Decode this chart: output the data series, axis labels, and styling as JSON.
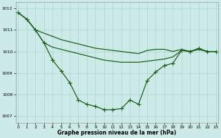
{
  "xlabel": "Graphe pression niveau de la mer (hPa)",
  "x": [
    0,
    1,
    2,
    3,
    4,
    5,
    6,
    7,
    8,
    9,
    10,
    11,
    12,
    13,
    14,
    15,
    16,
    17,
    18,
    19,
    20,
    21,
    22,
    23
  ],
  "line1": [
    1011.8,
    1011.5,
    1011.0,
    1010.85,
    1010.7,
    1010.55,
    1010.45,
    1010.35,
    1010.25,
    1010.15,
    1010.1,
    1010.05,
    1010.0,
    1009.95,
    1009.9,
    1010.05,
    1010.1,
    1010.1,
    1010.0,
    1010.1,
    1010.0,
    1010.1,
    1010.0,
    1010.0
  ],
  "line2": [
    1011.8,
    1011.5,
    1011.0,
    1010.4,
    1010.2,
    1010.1,
    1010.0,
    1009.9,
    1009.8,
    1009.7,
    1009.6,
    1009.55,
    1009.5,
    1009.5,
    1009.5,
    1009.55,
    1009.6,
    1009.65,
    1009.75,
    1010.05,
    1010.0,
    1010.1,
    1010.0,
    1010.0
  ],
  "line3": [
    1011.8,
    1011.5,
    1011.0,
    1010.4,
    1009.6,
    1009.1,
    1008.55,
    1007.75,
    1007.55,
    1007.45,
    1007.3,
    1007.3,
    1007.35,
    1007.75,
    1007.55,
    1008.65,
    1009.05,
    1009.35,
    1009.45,
    1010.05,
    1010.0,
    1010.15,
    1010.0,
    1010.0
  ],
  "ylim": [
    1006.7,
    1012.3
  ],
  "yticks": [
    1007,
    1008,
    1009,
    1010,
    1011,
    1012
  ],
  "xticks": [
    0,
    1,
    2,
    3,
    4,
    5,
    6,
    7,
    8,
    9,
    10,
    11,
    12,
    13,
    14,
    15,
    16,
    17,
    18,
    19,
    20,
    21,
    22,
    23
  ],
  "bg_color": "#cceae8",
  "grid_color": "#aad4d0",
  "line_color": "#1a5c1a",
  "markersize": 2.2,
  "linewidth": 0.9
}
